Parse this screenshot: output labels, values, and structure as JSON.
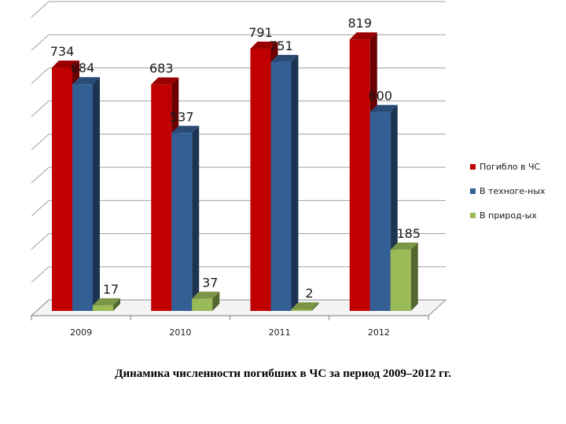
{
  "caption": "Динамика численности погибших в ЧС за период 2009–2012 гг.",
  "chart_data": {
    "type": "bar",
    "categories": [
      "2009",
      "2010",
      "2011",
      "2012"
    ],
    "series": [
      {
        "name": "Погибло в ЧС",
        "values": [
          734,
          683,
          791,
          819
        ],
        "color": "#c00000"
      },
      {
        "name": "В техноге-ных",
        "values": [
          684,
          537,
          751,
          600
        ],
        "color": "#335f94"
      },
      {
        "name": "В природ-ых",
        "values": [
          17,
          37,
          2,
          185
        ],
        "color": "#9bbb59"
      }
    ],
    "ylim": [
      0,
      900
    ],
    "grid": true,
    "legend": "right",
    "style": "3d-column"
  }
}
